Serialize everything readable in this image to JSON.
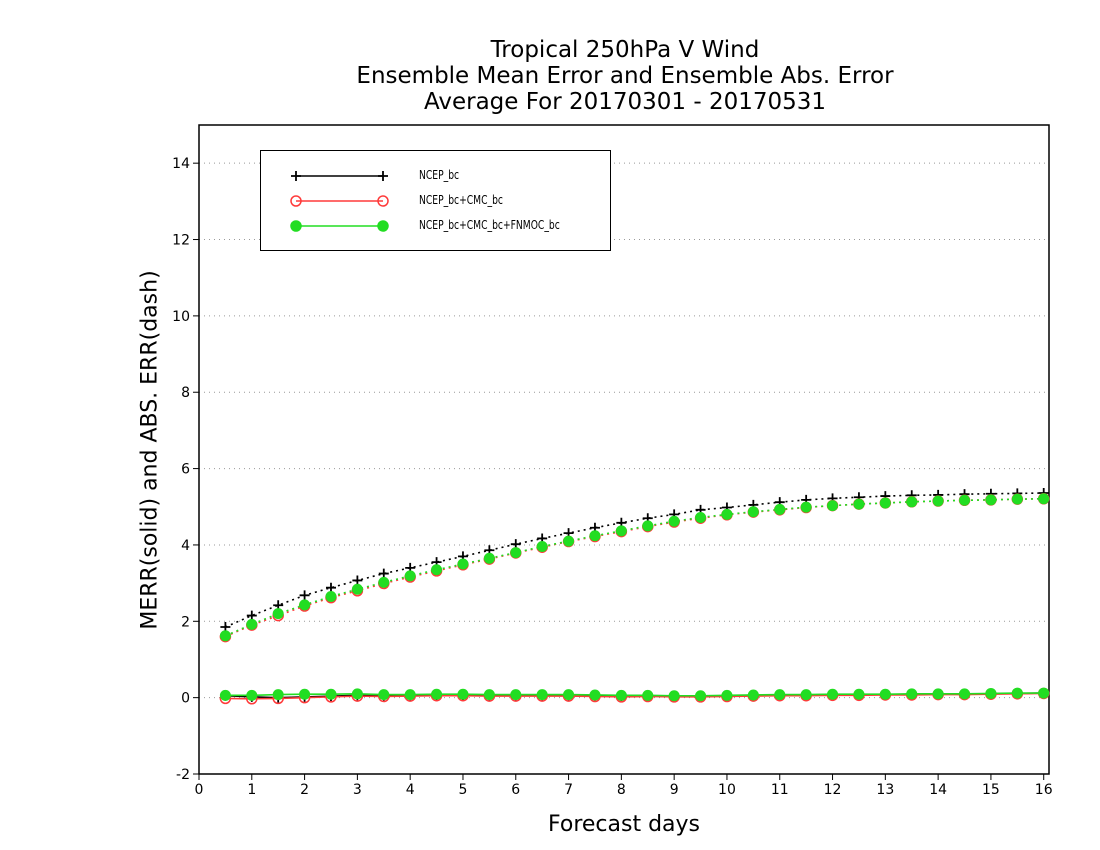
{
  "chart_data": {
    "type": "line",
    "title_lines": [
      "Tropical 250hPa V Wind",
      "Ensemble Mean Error and Ensemble Abs. Error",
      "Average For 20170301 - 20170531"
    ],
    "xlabel": "Forecast days",
    "ylabel": "MERR(solid) and ABS. ERR(dash)",
    "xlim": [
      0,
      16.1
    ],
    "ylim": [
      -2,
      15
    ],
    "xticks": [
      0,
      1,
      2,
      3,
      4,
      5,
      6,
      7,
      8,
      9,
      10,
      11,
      12,
      13,
      14,
      15,
      16
    ],
    "yticks": [
      -2,
      0,
      2,
      4,
      6,
      8,
      10,
      12,
      14
    ],
    "grid": "horizontal dotted",
    "legend_position": "top-left",
    "x": [
      0.5,
      1,
      1.5,
      2,
      2.5,
      3,
      3.5,
      4,
      4.5,
      5,
      5.5,
      6,
      6.5,
      7,
      7.5,
      8,
      8.5,
      9,
      9.5,
      10,
      10.5,
      11,
      11.5,
      12,
      12.5,
      13,
      13.5,
      14,
      14.5,
      15,
      15.5,
      16
    ],
    "series": [
      {
        "name": "NCEP_bc",
        "color": "#000000",
        "marker": "plus",
        "abs_err": [
          1.85,
          2.15,
          2.42,
          2.68,
          2.88,
          3.07,
          3.25,
          3.4,
          3.55,
          3.7,
          3.86,
          4.02,
          4.17,
          4.31,
          4.45,
          4.58,
          4.7,
          4.8,
          4.92,
          4.98,
          5.05,
          5.12,
          5.18,
          5.22,
          5.25,
          5.28,
          5.3,
          5.31,
          5.33,
          5.34,
          5.35,
          5.36
        ],
        "mean_err": [
          0.05,
          0.02,
          0.0,
          0.02,
          0.04,
          0.06,
          0.05,
          0.06,
          0.07,
          0.07,
          0.06,
          0.06,
          0.06,
          0.06,
          0.05,
          0.04,
          0.05,
          0.04,
          0.04,
          0.05,
          0.06,
          0.07,
          0.07,
          0.08,
          0.08,
          0.08,
          0.09,
          0.09,
          0.1,
          0.1,
          0.11,
          0.12
        ]
      },
      {
        "name": "NCEP_bc+CMC_bc",
        "color": "#ff3a3a",
        "marker": "open-circle",
        "abs_err": [
          1.6,
          1.9,
          2.15,
          2.4,
          2.62,
          2.8,
          2.99,
          3.16,
          3.32,
          3.48,
          3.63,
          3.79,
          3.94,
          4.09,
          4.22,
          4.35,
          4.48,
          4.6,
          4.7,
          4.79,
          4.86,
          4.92,
          4.98,
          5.03,
          5.07,
          5.1,
          5.13,
          5.15,
          5.17,
          5.18,
          5.2,
          5.21
        ],
        "mean_err": [
          -0.02,
          -0.03,
          -0.02,
          0.0,
          0.02,
          0.04,
          0.03,
          0.04,
          0.05,
          0.05,
          0.04,
          0.04,
          0.04,
          0.04,
          0.03,
          0.02,
          0.03,
          0.02,
          0.02,
          0.03,
          0.04,
          0.05,
          0.05,
          0.06,
          0.06,
          0.07,
          0.07,
          0.08,
          0.08,
          0.09,
          0.1,
          0.11
        ]
      },
      {
        "name": "NCEP_bc+CMC_bc+FNMOC_bc",
        "color": "#22dd22",
        "marker": "filled-circle",
        "abs_err": [
          1.62,
          1.92,
          2.2,
          2.43,
          2.65,
          2.84,
          3.02,
          3.19,
          3.35,
          3.5,
          3.65,
          3.8,
          3.96,
          4.1,
          4.24,
          4.37,
          4.5,
          4.62,
          4.72,
          4.8,
          4.87,
          4.93,
          4.99,
          5.03,
          5.07,
          5.1,
          5.13,
          5.15,
          5.17,
          5.18,
          5.2,
          5.21
        ],
        "mean_err": [
          0.06,
          0.06,
          0.08,
          0.09,
          0.09,
          0.1,
          0.08,
          0.08,
          0.09,
          0.09,
          0.08,
          0.08,
          0.08,
          0.08,
          0.07,
          0.06,
          0.06,
          0.05,
          0.05,
          0.06,
          0.07,
          0.08,
          0.08,
          0.09,
          0.09,
          0.09,
          0.1,
          0.1,
          0.1,
          0.11,
          0.12,
          0.12
        ]
      }
    ]
  }
}
